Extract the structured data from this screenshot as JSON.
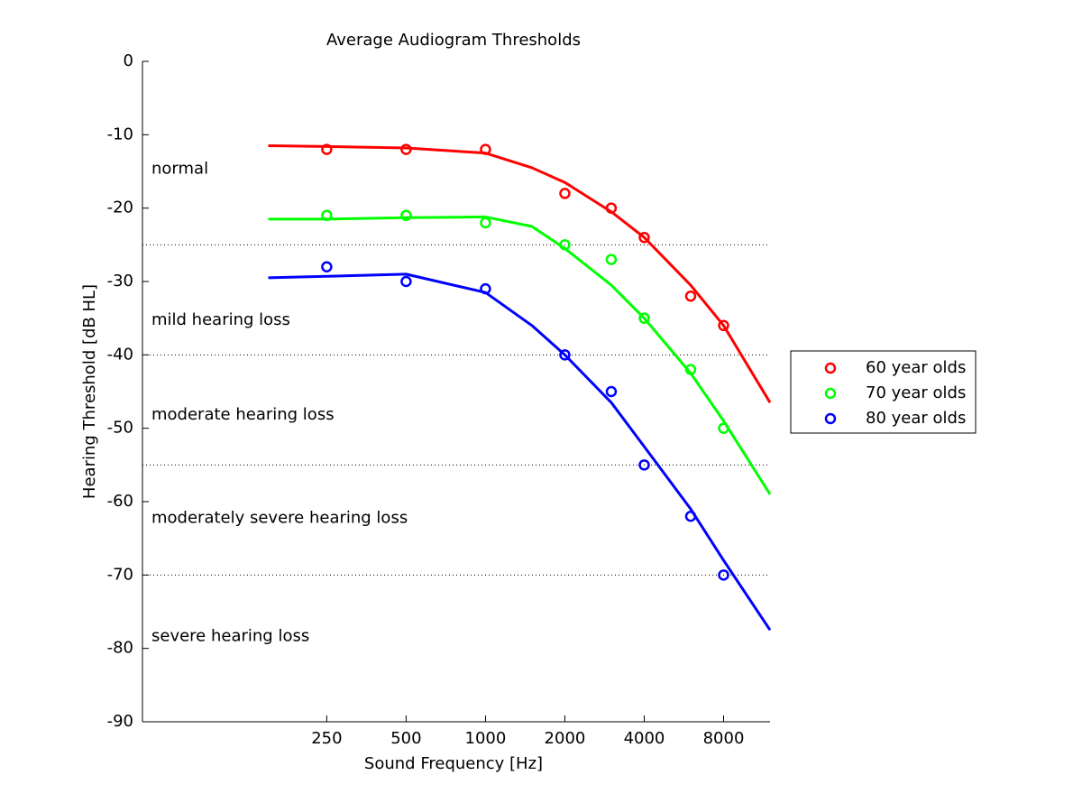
{
  "chart_data": {
    "type": "scatter",
    "title": "Average Audiogram Thresholds",
    "xlabel": "Sound Frequency [Hz]",
    "ylabel": "Hearing Threshold [dB HL]",
    "xscale": "log",
    "xlim": [
      50,
      12000
    ],
    "ylim": [
      -90,
      0
    ],
    "xticks": [
      250,
      500,
      1000,
      2000,
      4000,
      8000
    ],
    "yticks": [
      -90,
      -80,
      -70,
      -60,
      -50,
      -40,
      -30,
      -20,
      -10,
      0
    ],
    "legend": "right",
    "x": [
      250,
      500,
      1000,
      2000,
      3000,
      4000,
      6000,
      8000
    ],
    "series": [
      {
        "name": "60 year olds",
        "color": "#ff0000",
        "values": [
          -12,
          -12,
          -12,
          -18,
          -20,
          -24,
          -32,
          -36
        ]
      },
      {
        "name": "70 year olds",
        "color": "#00ff00",
        "values": [
          -21,
          -21,
          -22,
          -25,
          -27,
          -35,
          -42,
          -50
        ]
      },
      {
        "name": "80 year olds",
        "color": "#0000ff",
        "values": [
          -28,
          -30,
          -31,
          -40,
          -45,
          -55,
          -62,
          -70
        ]
      }
    ],
    "fits": [
      {
        "color": "#ff0000",
        "x": [
          150,
          250,
          500,
          1000,
          1500,
          2000,
          3000,
          4000,
          6000,
          8000,
          12000
        ],
        "values": [
          -11.5,
          -11.6,
          -11.8,
          -12.5,
          -14.5,
          -16.5,
          -20.5,
          -24,
          -30.5,
          -36,
          -46.5
        ]
      },
      {
        "color": "#00ff00",
        "x": [
          150,
          250,
          500,
          1000,
          1500,
          2000,
          3000,
          4000,
          6000,
          8000,
          12000
        ],
        "values": [
          -21.5,
          -21.5,
          -21.3,
          -21.2,
          -22.5,
          -25.5,
          -30.5,
          -35,
          -42.5,
          -49,
          -59
        ]
      },
      {
        "color": "#0000ff",
        "x": [
          150,
          250,
          500,
          1000,
          1500,
          2000,
          3000,
          4000,
          6000,
          8000,
          12000
        ],
        "values": [
          -29.5,
          -29.3,
          -29,
          -31.5,
          -36,
          -40,
          -46.5,
          -52.5,
          -61,
          -68,
          -77.5
        ]
      }
    ],
    "thresholds": [
      -25,
      -40,
      -55,
      -70
    ],
    "zones": [
      {
        "text": "normal",
        "y": -14.7
      },
      {
        "text": "mild hearing loss",
        "y": -35.3
      },
      {
        "text": "moderate hearing loss",
        "y": -48.2
      },
      {
        "text": "moderately severe hearing loss",
        "y": -62.3
      },
      {
        "text": "severe hearing loss",
        "y": -78.4
      }
    ]
  }
}
